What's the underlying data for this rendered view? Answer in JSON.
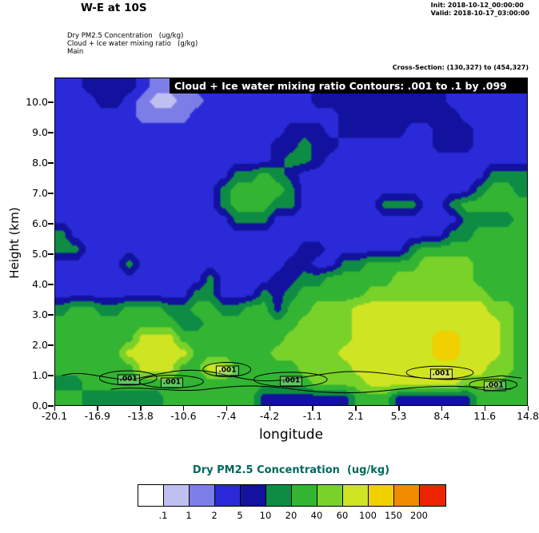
{
  "header": {
    "title": "W-E at 10S",
    "init": "Init: 2018-10-12_00:00:00",
    "valid": "Valid: 2018-10-17_03:00:00",
    "field1": "Dry PM2.5 Concentration   (ug/kg)",
    "field2": "Cloud + Ice water mixing ratio   (g/kg)",
    "model": "Main",
    "cross_section": "Cross-Section: (130,327) to (454,327)"
  },
  "plot": {
    "banner": "Cloud + Ice water mixing ratio Contours: .001 to .1 by .099",
    "xlabel": "longitude",
    "ylabel": "Height (km)",
    "x_ticks": [
      "-20.1",
      "-16.9",
      "-13.8",
      "-10.6",
      "-7.4",
      "-4.2",
      "-1.1",
      "2.1",
      "5.3",
      "8.4",
      "11.6",
      "14.8"
    ],
    "y_ticks": [
      "0.0",
      "1.0",
      "2.0",
      "3.0",
      "4.0",
      "5.0",
      "6.0",
      "7.0",
      "8.0",
      "9.0",
      "10.0"
    ]
  },
  "colorbar": {
    "title": "Dry PM2.5 Concentration  (ug/kg)",
    "title_color": "#00695c",
    "labels": [
      ".1",
      "1",
      "2",
      "5",
      "10",
      "20",
      "40",
      "60",
      "100",
      "150",
      "200"
    ],
    "colors": [
      "#ffffff",
      "#c0c0f0",
      "#7d7de8",
      "#2a2ad8",
      "#12129e",
      "#0e8c44",
      "#33b433",
      "#78d229",
      "#cfe422",
      "#f0d000",
      "#f08c00",
      "#ee2400"
    ]
  },
  "chart_data": {
    "type": "heatmap",
    "title": "Dry PM2.5 Concentration cross-section, W-E at 10S",
    "xlabel": "longitude",
    "ylabel": "Height (km)",
    "x_range": [
      -20.1,
      14.8
    ],
    "y_range": [
      0.0,
      10.8
    ],
    "x_ticks": [
      -20.1,
      -16.9,
      -13.8,
      -10.6,
      -7.4,
      -4.2,
      -1.1,
      2.1,
      5.3,
      8.4,
      11.6,
      14.8
    ],
    "y_ticks": [
      0,
      1,
      2,
      3,
      4,
      5,
      6,
      7,
      8,
      9,
      10
    ],
    "color_levels_ugkg": [
      0.1,
      1,
      2,
      5,
      10,
      20,
      40,
      60,
      100,
      150,
      200
    ],
    "palette": [
      "#ffffff",
      "#c0c0f0",
      "#7d7de8",
      "#2a2ad8",
      "#12129e",
      "#0e8c44",
      "#33b433",
      "#78d229",
      "#cfe422",
      "#f0d000",
      "#f08c00",
      "#ee2400"
    ],
    "grid_encoding": "22 rows top(10.8km) to bottom(0km), 35 cols lon -20.1 to 14.8; each hex char = palette bin index",
    "grid": [
      "33444432223333333334444444444333333",
      "33344321122333333334444444444333333",
      "33333322223333333333344444444433333",
      "33333333333333333444344444334443333",
      "33333333333333334454433333334443333",
      "33333333333333334554333333333333333",
      "33333333333335565433333333333333555",
      "33333333333356666533333333333335665",
      "33333333333356665533333355533566666",
      "33333333333335553333333333333355556",
      "53333333333333333333333333333556666",
      "55333333333333333344333333566666666",
      "33333533333333333443355666677776666",
      "33333333333533334455666667777776666",
      "33333333335533354566666777777777666",
      "56655666556655664667778888888888776",
      "66666666655666666677778888888888876",
      "66666688866666666777778888889988876",
      "66666888886666667777788888889988876",
      "66666688866886666677778888888888776",
      "55666666666666666667777888888877766",
      "66555555666666644444446664444446666"
    ],
    "contour_overlay": {
      "field": "Cloud + Ice water mixing ratio (g/kg)",
      "levels": [
        0.001,
        0.1
      ],
      "step_note": ".001 to .1 by .099",
      "label_text": ".001",
      "label_positions": [
        {
          "lon": -14.7,
          "km": 0.9
        },
        {
          "lon": -11.5,
          "km": 0.78
        },
        {
          "lon": -7.4,
          "km": 1.18
        },
        {
          "lon": -2.7,
          "km": 0.85
        },
        {
          "lon": 8.35,
          "km": 1.08
        },
        {
          "lon": 12.3,
          "km": 0.68
        }
      ]
    },
    "legend_position": "bottom"
  }
}
